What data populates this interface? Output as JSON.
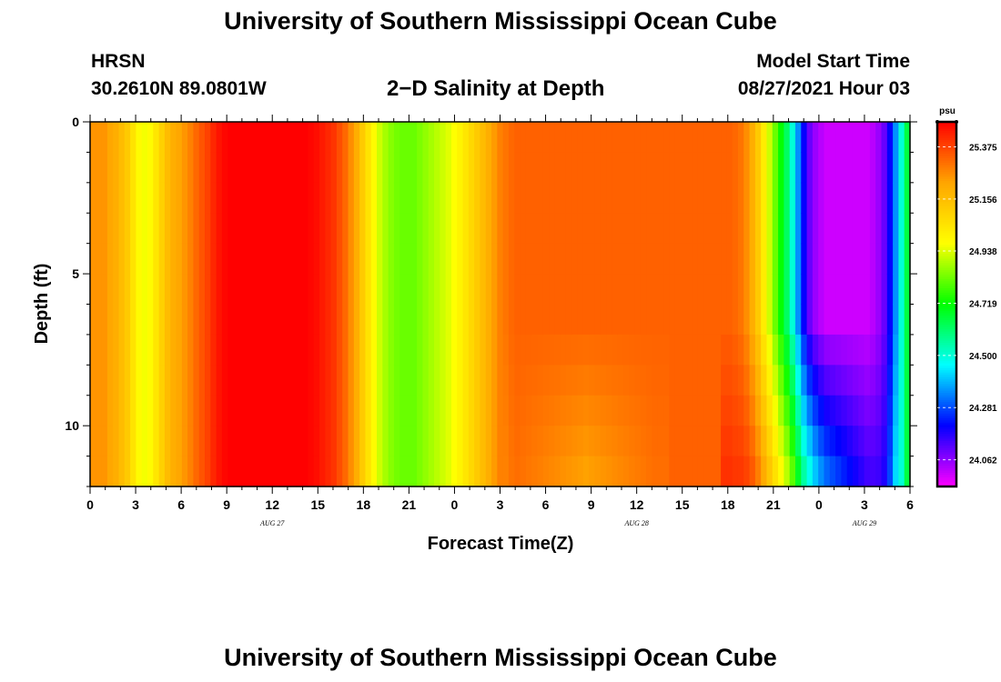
{
  "header": {
    "title": "University of Southern Mississippi Ocean Cube",
    "station_name": "HRSN",
    "station_coords": "30.2610N  89.0801W",
    "plot_title": "2−D Salinity at Depth",
    "model_start_label": "Model Start Time",
    "model_start_value": "08/27/2021 Hour 03"
  },
  "footer": {
    "title": "University of Southern Mississippi Ocean Cube"
  },
  "chart_data": {
    "type": "heatmap",
    "title": "2−D Salinity at Depth",
    "xlabel": "Forecast Time(Z)",
    "ylabel": "Depth (ft)",
    "x_ticks": [
      "0",
      "3",
      "6",
      "9",
      "12",
      "15",
      "18",
      "21",
      "0",
      "3",
      "6",
      "9",
      "12",
      "15",
      "18",
      "21",
      "0",
      "3",
      "6"
    ],
    "x_date_labels": [
      {
        "label": "AUG  27",
        "at_hour": 12
      },
      {
        "label": "AUG  28",
        "at_hour": 36
      },
      {
        "label": "AUG  29",
        "at_hour": 51
      }
    ],
    "x_range_hours": [
      0,
      54
    ],
    "y_ticks": [
      "0",
      "5",
      "10"
    ],
    "y_range_ft": [
      0,
      12
    ],
    "colorbar": {
      "unit": "psu",
      "labels": [
        "25.375",
        "25.156",
        "24.938",
        "24.719",
        "24.500",
        "24.281",
        "24.062"
      ],
      "range": [
        23.95,
        25.48
      ],
      "colors": [
        "#ff00ff",
        "#0000ff",
        "#00ffff",
        "#00ff00",
        "#ffff00",
        "#ffa500",
        "#ff0000"
      ]
    },
    "time_profile_surface_psu": [
      25.25,
      25.25,
      25.25,
      25.22,
      25.2,
      25.16,
      25.12,
      25.05,
      24.98,
      24.96,
      24.98,
      25.04,
      25.1,
      25.16,
      25.2,
      25.22,
      25.25,
      25.28,
      25.32,
      25.35,
      25.38,
      25.42,
      25.45,
      25.47,
      25.48,
      25.48,
      25.48,
      25.48,
      25.48,
      25.48,
      25.48,
      25.48,
      25.48,
      25.48,
      25.48,
      25.48,
      25.48,
      25.48,
      25.47,
      25.46,
      25.44,
      25.42,
      25.4,
      25.36,
      25.32,
      25.26,
      25.2,
      25.12,
      25.05,
      24.98,
      24.92,
      24.88,
      24.85,
      24.83,
      24.82,
      24.82,
      24.82,
      24.84,
      24.86,
      24.88,
      24.9,
      24.92,
      24.94,
      24.97,
      25.0,
      25.04,
      25.08,
      25.12,
      25.16,
      25.2,
      25.24,
      25.28,
      25.3,
      25.32,
      25.33,
      25.33,
      25.33,
      25.33,
      25.33,
      25.33,
      25.33,
      25.33,
      25.33,
      25.33,
      25.33,
      25.33,
      25.33,
      25.33,
      25.33,
      25.33,
      25.33,
      25.33,
      25.33,
      25.33,
      25.33,
      25.33,
      25.33,
      25.33,
      25.33,
      25.33,
      25.33,
      25.33,
      25.33,
      25.33,
      25.33,
      25.33,
      25.33,
      25.33,
      25.33,
      25.33,
      25.33,
      25.33,
      25.32,
      25.3,
      25.26,
      25.2,
      25.12,
      25.02,
      24.92,
      24.82,
      24.72,
      24.62,
      24.5,
      24.35,
      24.2,
      24.1,
      24.05,
      24.02,
      24.0,
      24.0,
      24.0,
      24.0,
      24.0,
      24.0,
      24.0,
      24.0,
      24.02,
      24.05,
      24.1,
      24.2,
      24.35,
      24.5,
      24.65
    ],
    "depth_effect": [
      {
        "start_col": 72,
        "end_col": 100,
        "deep_shift_psu": -0.12
      },
      {
        "start_col": 110,
        "end_col": 140,
        "deep_shift_psu": 0.45
      }
    ]
  }
}
